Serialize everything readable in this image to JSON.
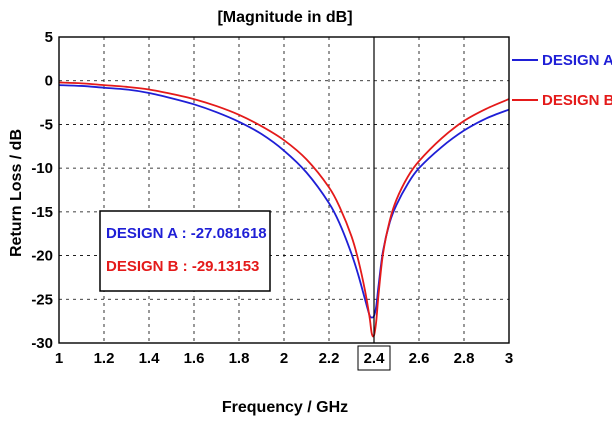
{
  "chart_data": {
    "type": "line",
    "title": "[Magnitude in dB]",
    "xlabel": "Frequency / GHz",
    "ylabel": "Return Loss  /  dB",
    "xlim": [
      1,
      3
    ],
    "ylim": [
      -30,
      5
    ],
    "x_ticks": [
      "1",
      "1.2",
      "1.4",
      "1.6",
      "1.8",
      "2",
      "2.2",
      "2.4",
      "2.6",
      "2.8",
      "3"
    ],
    "y_ticks": [
      "5",
      "0",
      "-5",
      "-10",
      "-15",
      "-20",
      "-25",
      "-30"
    ],
    "grid": true,
    "marker_x": 2.4,
    "legend_position": "right",
    "series": [
      {
        "name": "DESIGN A",
        "color": "#1f1fd6",
        "x": [
          1.0,
          1.1,
          1.2,
          1.3,
          1.4,
          1.5,
          1.6,
          1.7,
          1.8,
          1.9,
          2.0,
          2.1,
          2.2,
          2.25,
          2.3,
          2.33,
          2.36,
          2.38,
          2.39,
          2.4,
          2.41,
          2.42,
          2.44,
          2.47,
          2.5,
          2.55,
          2.6,
          2.7,
          2.8,
          2.9,
          3.0
        ],
        "y": [
          -0.5,
          -0.6,
          -0.8,
          -1.0,
          -1.4,
          -2.0,
          -2.7,
          -3.6,
          -4.7,
          -6.1,
          -8.0,
          -10.5,
          -14.0,
          -16.5,
          -19.8,
          -22.2,
          -25.0,
          -26.8,
          -27.08,
          -26.9,
          -25.8,
          -23.5,
          -19.5,
          -16.2,
          -14.2,
          -11.8,
          -10.0,
          -7.6,
          -5.7,
          -4.3,
          -3.3
        ]
      },
      {
        "name": "DESIGN B",
        "color": "#e41a1a",
        "x": [
          1.0,
          1.1,
          1.2,
          1.3,
          1.4,
          1.5,
          1.6,
          1.7,
          1.8,
          1.9,
          2.0,
          2.1,
          2.2,
          2.25,
          2.3,
          2.33,
          2.36,
          2.38,
          2.39,
          2.4,
          2.41,
          2.42,
          2.44,
          2.47,
          2.5,
          2.55,
          2.6,
          2.7,
          2.8,
          2.9,
          3.0
        ],
        "y": [
          -0.2,
          -0.3,
          -0.5,
          -0.7,
          -1.0,
          -1.5,
          -2.1,
          -2.9,
          -3.9,
          -5.2,
          -6.8,
          -9.0,
          -12.2,
          -14.6,
          -17.8,
          -20.5,
          -24.0,
          -27.0,
          -28.9,
          -29.13,
          -27.5,
          -24.5,
          -19.8,
          -16.0,
          -13.6,
          -11.0,
          -9.2,
          -6.6,
          -4.6,
          -3.2,
          -2.1
        ]
      }
    ],
    "annotations": [
      {
        "text": "DESIGN A : -27.081618",
        "color": "#1f1fd6"
      },
      {
        "text": "DESIGN B : -29.13153",
        "color": "#e41a1a"
      }
    ]
  }
}
